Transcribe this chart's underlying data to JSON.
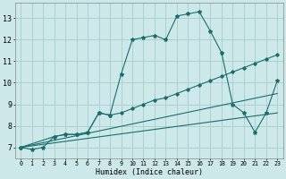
{
  "xlabel": "Humidex (Indice chaleur)",
  "xlim": [
    -0.5,
    23.5
  ],
  "ylim": [
    6.5,
    13.7
  ],
  "yticks": [
    7,
    8,
    9,
    10,
    11,
    12,
    13
  ],
  "xticks": [
    0,
    1,
    2,
    3,
    4,
    5,
    6,
    7,
    8,
    9,
    10,
    11,
    12,
    13,
    14,
    15,
    16,
    17,
    18,
    19,
    20,
    21,
    22,
    23
  ],
  "bg_color": "#cce8e8",
  "grid_color": "#aacccc",
  "line_color": "#1a6e6e",
  "line1_x": [
    0,
    1,
    2,
    3,
    4,
    5,
    6,
    7,
    8,
    9,
    10,
    11,
    12,
    13,
    14,
    15,
    16,
    17,
    18,
    19,
    20,
    21,
    22,
    23
  ],
  "line1_y": [
    7.0,
    6.9,
    7.0,
    7.5,
    7.6,
    7.6,
    7.7,
    8.6,
    8.5,
    10.4,
    12.0,
    12.1,
    12.2,
    12.0,
    13.1,
    13.2,
    13.3,
    12.4,
    11.4,
    9.0,
    8.6,
    7.7,
    8.6,
    10.1
  ],
  "line2_x": [
    0,
    3,
    4,
    5,
    6,
    7,
    8,
    9,
    10,
    11,
    12,
    13,
    14,
    15,
    16,
    17,
    18,
    19,
    20,
    21,
    22,
    23
  ],
  "line2_y": [
    7.0,
    7.5,
    7.6,
    7.6,
    7.7,
    8.6,
    8.5,
    8.6,
    8.8,
    9.0,
    9.2,
    9.3,
    9.5,
    9.7,
    9.9,
    10.1,
    10.3,
    10.5,
    10.7,
    10.9,
    11.1,
    11.3
  ],
  "line3_x": [
    0,
    23
  ],
  "line3_y": [
    7.0,
    9.5
  ],
  "line4_x": [
    0,
    23
  ],
  "line4_y": [
    7.0,
    8.6
  ]
}
